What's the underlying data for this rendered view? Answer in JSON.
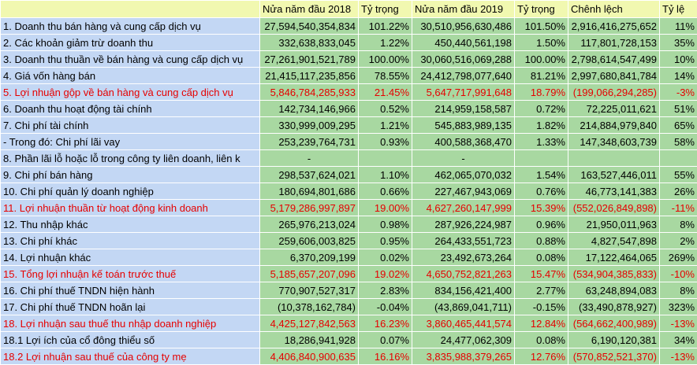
{
  "headers": [
    "",
    "Nửa năm đầu 2018",
    "Tỷ trọng",
    "Nửa năm đầu 2019",
    "Tỷ trọng",
    "Chênh lệch",
    "Tỷ lệ"
  ],
  "rows": [
    {
      "label": "1. Doanh thu bán hàng và cung cấp dịch vụ",
      "v2018": "27,594,540,354,834",
      "p2018": "101.22%",
      "v2019": "30,510,956,630,486",
      "p2019": "101.50%",
      "diff": "2,916,416,275,652",
      "ratio": "11%",
      "highlight": false
    },
    {
      "label": "2. Các khoản giảm trừ doanh thu",
      "v2018": "332,638,833,045",
      "p2018": "1.22%",
      "v2019": "450,440,561,198",
      "p2019": "1.50%",
      "diff": "117,801,728,153",
      "ratio": "35%",
      "highlight": false
    },
    {
      "label": "3. Doanh thu thuần về bán hàng và cung cấp dịch vụ",
      "v2018": "27,261,901,521,789",
      "p2018": "100.00%",
      "v2019": "30,060,516,069,288",
      "p2019": "100.00%",
      "diff": "2,798,614,547,499",
      "ratio": "10%",
      "highlight": false
    },
    {
      "label": "4. Giá vốn hàng bán",
      "v2018": "21,415,117,235,856",
      "p2018": "78.55%",
      "v2019": "24,412,798,077,640",
      "p2019": "81.21%",
      "diff": "2,997,680,841,784",
      "ratio": "14%",
      "highlight": false
    },
    {
      "label": "5. Lợi nhuận gộp về bán hàng và cung cấp dịch vụ",
      "v2018": "5,846,784,285,933",
      "p2018": "21.45%",
      "v2019": "5,647,717,991,648",
      "p2019": "18.79%",
      "diff": "(199,066,294,285)",
      "ratio": "-3%",
      "highlight": true
    },
    {
      "label": "6. Doanh thu hoạt động tài chính",
      "v2018": "142,734,146,966",
      "p2018": "0.52%",
      "v2019": "214,959,158,587",
      "p2019": "0.72%",
      "diff": "72,225,011,621",
      "ratio": "51%",
      "highlight": false
    },
    {
      "label": "7. Chi phí tài chính",
      "v2018": "330,999,009,295",
      "p2018": "1.21%",
      "v2019": "545,883,989,135",
      "p2019": "1.82%",
      "diff": "214,884,979,840",
      "ratio": "65%",
      "highlight": false
    },
    {
      "label": " - Trong đó: Chi phí lãi vay",
      "v2018": "253,239,764,731",
      "p2018": "0.93%",
      "v2019": "400,588,368,470",
      "p2019": "1.33%",
      "diff": "147,348,603,739",
      "ratio": "58%",
      "highlight": false
    },
    {
      "label": "8. Phần lãi lỗ hoặc lỗ trong công ty liên doanh, liên k",
      "v2018": "-",
      "p2018": "",
      "v2019": "-",
      "p2019": "",
      "diff": "",
      "ratio": "",
      "highlight": false
    },
    {
      "label": "9. Chi phí bán hàng",
      "v2018": "298,537,624,021",
      "p2018": "1.10%",
      "v2019": "462,065,070,032",
      "p2019": "1.54%",
      "diff": "163,527,446,011",
      "ratio": "55%",
      "highlight": false
    },
    {
      "label": "10. Chi phí quản lý doanh nghiệp",
      "v2018": "180,694,801,686",
      "p2018": "0.66%",
      "v2019": "227,467,943,069",
      "p2019": "0.76%",
      "diff": "46,773,141,383",
      "ratio": "26%",
      "highlight": false
    },
    {
      "label": "11. Lợi nhuận thuần từ hoạt động kinh doanh",
      "v2018": "5,179,286,997,897",
      "p2018": "19.00%",
      "v2019": "4,627,260,147,999",
      "p2019": "15.39%",
      "diff": "(552,026,849,898)",
      "ratio": "-11%",
      "highlight": true
    },
    {
      "label": "12. Thu nhập khác",
      "v2018": "265,976,213,024",
      "p2018": "0.98%",
      "v2019": "287,926,224,987",
      "p2019": "0.96%",
      "diff": "21,950,011,963",
      "ratio": "8%",
      "highlight": false
    },
    {
      "label": "13. Chi phí khác",
      "v2018": "259,606,003,825",
      "p2018": "0.95%",
      "v2019": "264,433,551,723",
      "p2019": "0.88%",
      "diff": "4,827,547,898",
      "ratio": "2%",
      "highlight": false
    },
    {
      "label": "14. Lợi nhuận khác",
      "v2018": "6,370,209,199",
      "p2018": "0.02%",
      "v2019": "23,492,673,264",
      "p2019": "0.08%",
      "diff": "17,122,464,065",
      "ratio": "269%",
      "highlight": false
    },
    {
      "label": "15. Tổng lợi nhuận kế toán trước thuế",
      "v2018": "5,185,657,207,096",
      "p2018": "19.02%",
      "v2019": "4,650,752,821,263",
      "p2019": "15.47%",
      "diff": "(534,904,385,833)",
      "ratio": "-10%",
      "highlight": true
    },
    {
      "label": "16. Chi phí thuế TNDN hiện hành",
      "v2018": "770,907,527,317",
      "p2018": "2.83%",
      "v2019": "834,156,421,400",
      "p2019": "2.77%",
      "diff": "63,248,894,083",
      "ratio": "8%",
      "highlight": false
    },
    {
      "label": "17. Chi phí thuế TNDN hoãn lại",
      "v2018": "(10,378,162,784)",
      "p2018": "-0.04%",
      "v2019": "(43,869,041,711)",
      "p2019": "-0.15%",
      "diff": "(33,490,878,927)",
      "ratio": "323%",
      "highlight": false
    },
    {
      "label": "18. Lợi nhuận sau thuế thu nhập doanh nghiệp",
      "v2018": "4,425,127,842,563",
      "p2018": "16.23%",
      "v2019": "3,860,465,441,574",
      "p2019": "12.84%",
      "diff": "(564,662,400,989)",
      "ratio": "-13%",
      "highlight": true
    },
    {
      "label": "18.1 Lợi ích của cổ đông thiểu số",
      "v2018": "18,286,941,928",
      "p2018": "0.07%",
      "v2019": "24,477,062,309",
      "p2019": "0.08%",
      "diff": "6,190,120,381",
      "ratio": "34%",
      "highlight": false
    },
    {
      "label": "18.2 Lợi nhuận sau thuế của công ty mẹ",
      "v2018": "4,406,840,900,635",
      "p2018": "16.16%",
      "v2019": "3,835,988,379,265",
      "p2019": "12.76%",
      "diff": "(570,852,521,370)",
      "ratio": "-13%",
      "highlight": true
    }
  ]
}
